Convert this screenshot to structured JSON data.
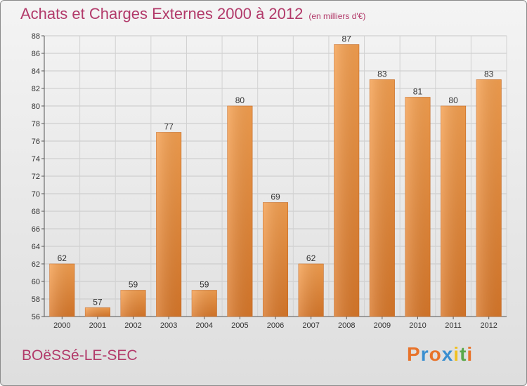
{
  "header": {
    "title": "Achats et Charges Externes 2000 à 2012",
    "subtitle": "(en milliers d'€)"
  },
  "footer": {
    "commune": "BOëSSé-LE-SEC",
    "brand_letters": [
      "P",
      "r",
      "o",
      "x",
      "i",
      "t",
      "i"
    ],
    "brand_colors": [
      "#e8732a",
      "#3a8fd0",
      "#e8732a",
      "#3a8fd0",
      "#f0c020",
      "#5aa84a",
      "#e8732a"
    ]
  },
  "chart_data": {
    "type": "bar",
    "title": "Achats et Charges Externes 2000 à 2012",
    "categories": [
      "2000",
      "2001",
      "2002",
      "2003",
      "2004",
      "2005",
      "2006",
      "2007",
      "2008",
      "2009",
      "2010",
      "2011",
      "2012"
    ],
    "values": [
      62,
      57,
      59,
      77,
      59,
      80,
      69,
      62,
      87,
      83,
      81,
      80,
      83
    ],
    "ylim": [
      56,
      88
    ],
    "yticks": [
      56,
      58,
      60,
      62,
      64,
      66,
      68,
      70,
      72,
      74,
      76,
      78,
      80,
      82,
      84,
      86,
      88
    ],
    "grid": true,
    "bar_color_top": "#f5a050",
    "bar_color_bottom": "#d9782a"
  }
}
